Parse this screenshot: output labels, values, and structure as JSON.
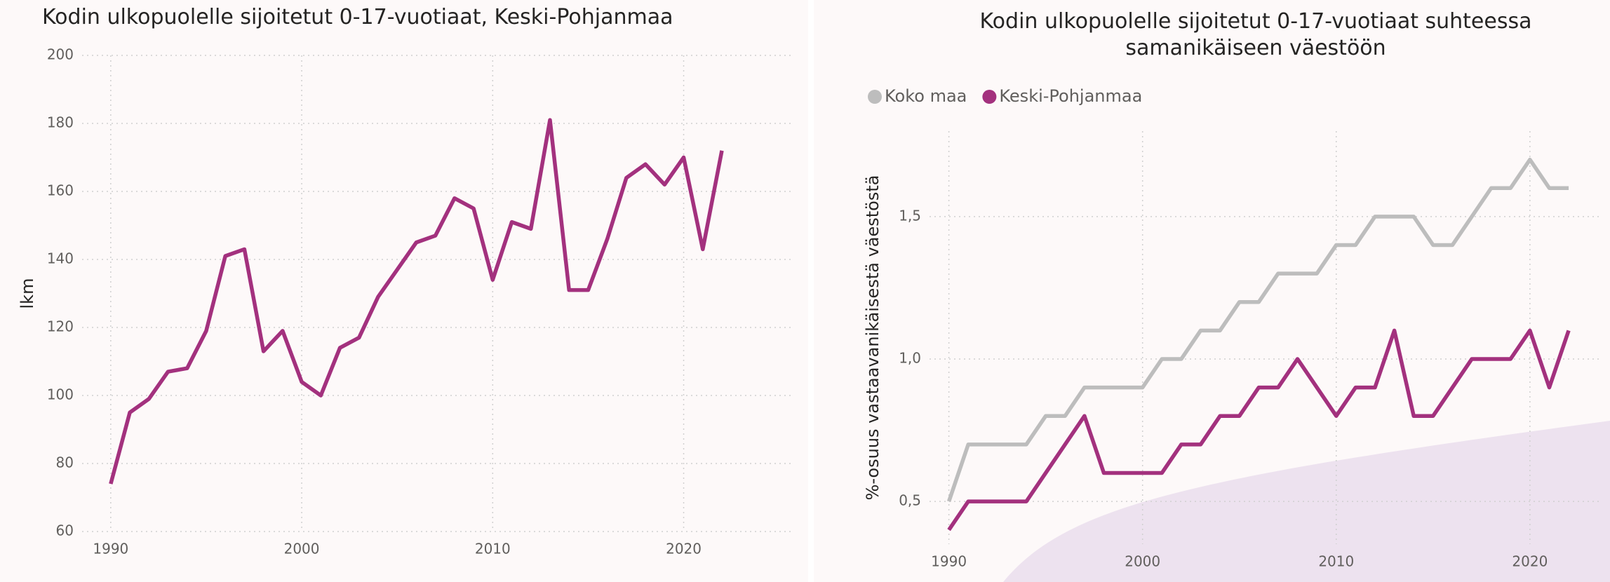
{
  "chart_data": [
    {
      "type": "line",
      "title": "Kodin ulkopuolelle sijoitetut 0-17-vuotiaat, Keski-Pohjanmaa",
      "ylabel": "lkm",
      "x": [
        1990,
        1991,
        1992,
        1993,
        1994,
        1995,
        1996,
        1997,
        1998,
        1999,
        2000,
        2001,
        2002,
        2003,
        2004,
        2005,
        2006,
        2007,
        2008,
        2009,
        2010,
        2011,
        2012,
        2013,
        2014,
        2015,
        2016,
        2017,
        2018,
        2019,
        2020,
        2021,
        2022
      ],
      "series": [
        {
          "name": "Keski-Pohjanmaa",
          "color": "#a3317e",
          "values": [
            74,
            95,
            99,
            107,
            108,
            119,
            141,
            143,
            113,
            119,
            104,
            100,
            114,
            117,
            129,
            137,
            145,
            147,
            158,
            155,
            134,
            151,
            149,
            181,
            131,
            131,
            146,
            164,
            168,
            162,
            170,
            143,
            172
          ]
        }
      ],
      "xlim": [
        1988.5,
        2025.6
      ],
      "xticks": [
        1990,
        2000,
        2010,
        2020
      ],
      "ylim": [
        60,
        200
      ],
      "yticks": [
        60,
        80,
        100,
        120,
        140,
        160,
        180,
        200
      ],
      "grid": true,
      "legend": false
    },
    {
      "type": "line",
      "title": "Kodin ulkopuolelle sijoitetut 0-17-vuotiaat suhteessa samanikäiseen väestöön",
      "ylabel": "%-osuus vastaavanikäisestä väestöstä",
      "x": [
        1990,
        1991,
        1992,
        1993,
        1994,
        1995,
        1996,
        1997,
        1998,
        1999,
        2000,
        2001,
        2002,
        2003,
        2004,
        2005,
        2006,
        2007,
        2008,
        2009,
        2010,
        2011,
        2012,
        2013,
        2014,
        2015,
        2016,
        2017,
        2018,
        2019,
        2020,
        2021,
        2022
      ],
      "series": [
        {
          "name": "Koko maa",
          "color": "#bdbdbd",
          "values": [
            0.5,
            0.7,
            0.7,
            0.7,
            0.7,
            0.8,
            0.8,
            0.9,
            0.9,
            0.9,
            0.9,
            1.0,
            1.0,
            1.1,
            1.1,
            1.2,
            1.2,
            1.3,
            1.3,
            1.3,
            1.4,
            1.4,
            1.5,
            1.5,
            1.5,
            1.4,
            1.4,
            1.5,
            1.6,
            1.6,
            1.7,
            1.6,
            1.6
          ]
        },
        {
          "name": "Keski-Pohjanmaa",
          "color": "#a3317e",
          "values": [
            0.4,
            0.5,
            0.5,
            0.5,
            0.5,
            0.6,
            0.7,
            0.8,
            0.6,
            0.6,
            0.6,
            0.6,
            0.7,
            0.7,
            0.8,
            0.8,
            0.9,
            0.9,
            1.0,
            0.9,
            0.8,
            0.9,
            0.9,
            1.1,
            0.8,
            0.8,
            0.9,
            1.0,
            1.0,
            1.0,
            1.1,
            0.9,
            1.1
          ]
        }
      ],
      "xlim": [
        1989,
        2023.7
      ],
      "xticks": [
        1990,
        2000,
        2010,
        2020
      ],
      "ylim": [
        0.35,
        1.8
      ],
      "yticks": [
        {
          "value": 0.5,
          "label": "0,5"
        },
        {
          "value": 1.0,
          "label": "1,0"
        },
        {
          "value": 1.5,
          "label": "1,5"
        }
      ],
      "grid": true,
      "legend": "top-left"
    }
  ]
}
